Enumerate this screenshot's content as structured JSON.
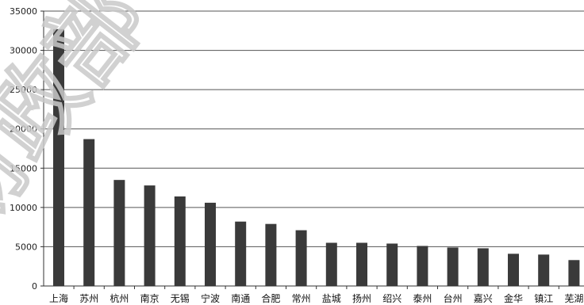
{
  "chart_data": {
    "type": "bar",
    "title": "",
    "xlabel": "",
    "ylabel": "",
    "ylim": [
      0,
      35000
    ],
    "yticks": [
      0,
      5000,
      10000,
      15000,
      20000,
      25000,
      30000,
      35000
    ],
    "grid": "horizontal",
    "legend": "none",
    "bar_color": "#3a3a3a",
    "categories": [
      "上海",
      "苏州",
      "杭州",
      "南京",
      "无锡",
      "宁波",
      "南通",
      "合肥",
      "常州",
      "盐城",
      "扬州",
      "绍兴",
      "泰州",
      "台州",
      "嘉兴",
      "金华",
      "镇江",
      "芜湖"
    ],
    "values": [
      32700,
      18700,
      13500,
      12800,
      11400,
      10600,
      8200,
      7900,
      7100,
      5500,
      5500,
      5400,
      5100,
      4900,
      4800,
      4100,
      4000,
      3300
    ]
  },
  "watermark": {
    "text": "财政部",
    "color": "#c9c9c9"
  }
}
